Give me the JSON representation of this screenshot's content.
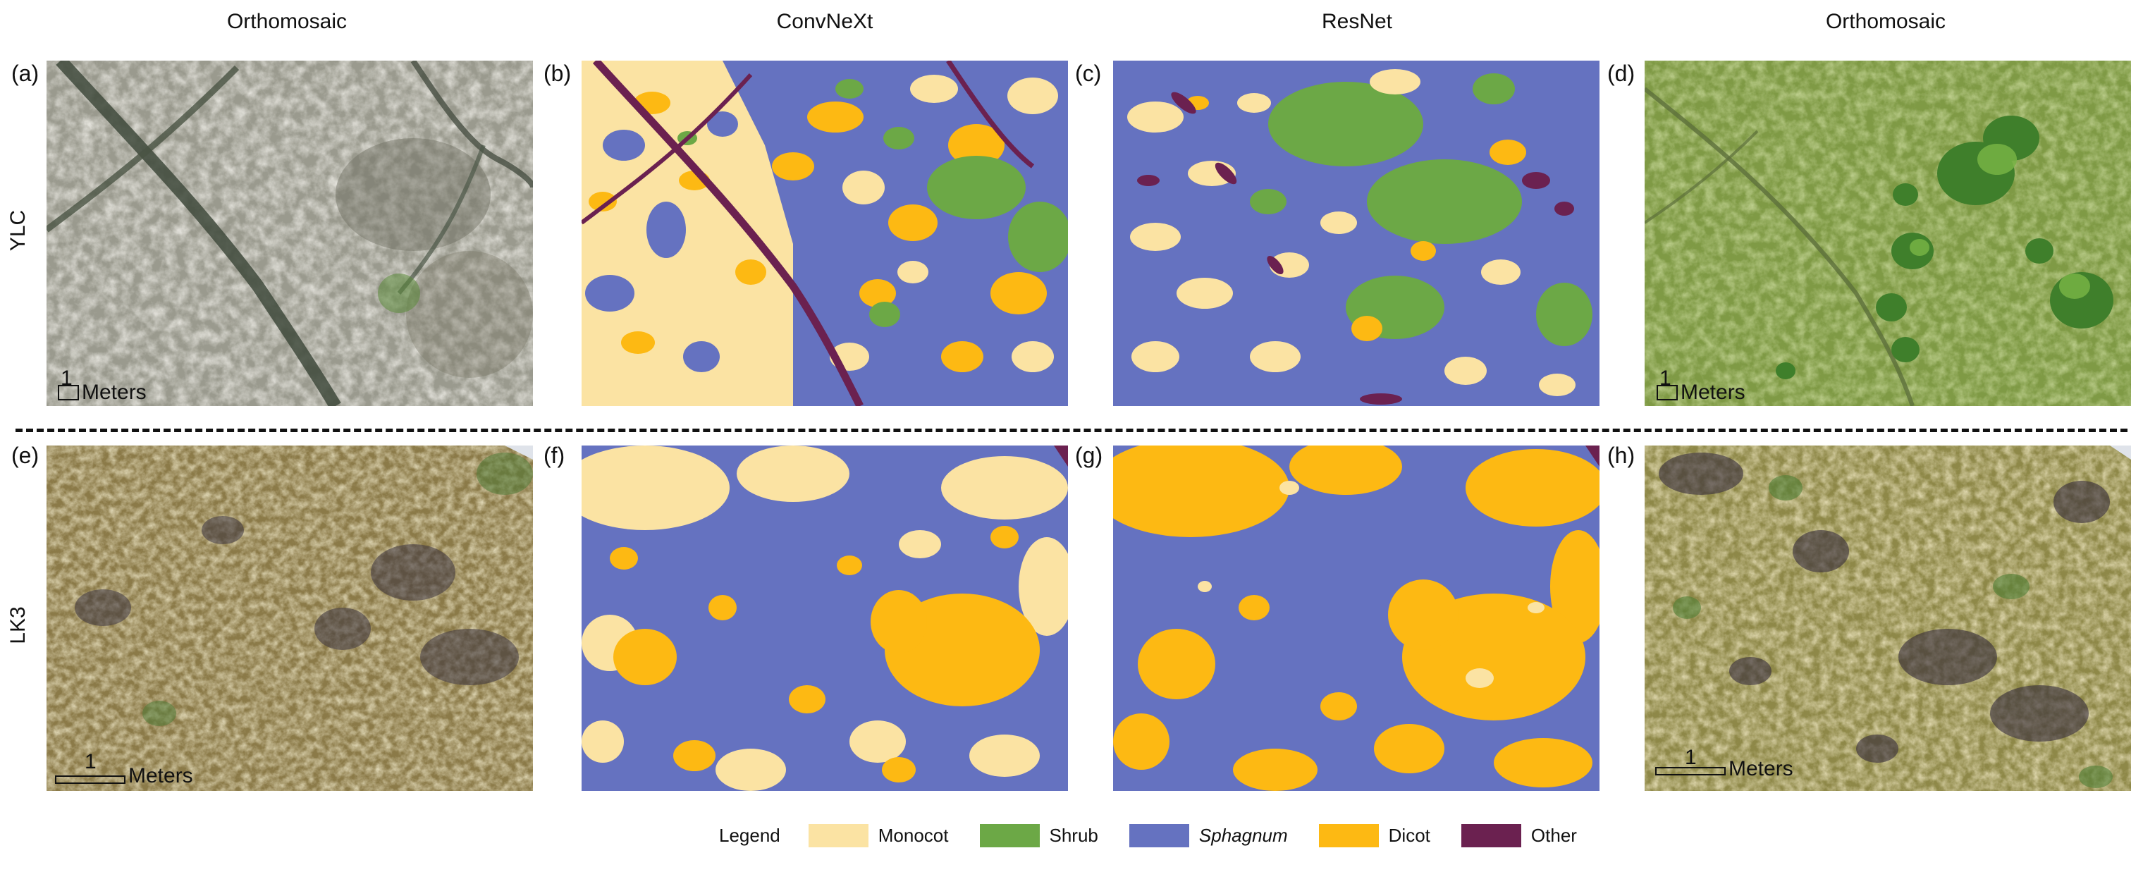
{
  "columns": [
    "Orthomosaic",
    "ConvNeXt",
    "ResNet",
    "Orthomosaic"
  ],
  "rows": [
    "YLC",
    "LK3"
  ],
  "panel_labels": [
    "(a)",
    "(b)",
    "(c)",
    "(d)",
    "(e)",
    "(f)",
    "(g)",
    "(h)"
  ],
  "scale": {
    "value": "1",
    "unit": "Meters"
  },
  "legend": {
    "title": "Legend",
    "items": [
      {
        "label": "Monocot",
        "color": "#fbe3a3"
      },
      {
        "label": "Shrub",
        "color": "#6ca846"
      },
      {
        "label": "Sphagnum",
        "color": "#6572c0",
        "italic": true
      },
      {
        "label": "Dicot",
        "color": "#fdb913"
      },
      {
        "label": "Other",
        "color": "#6b2150"
      }
    ]
  }
}
